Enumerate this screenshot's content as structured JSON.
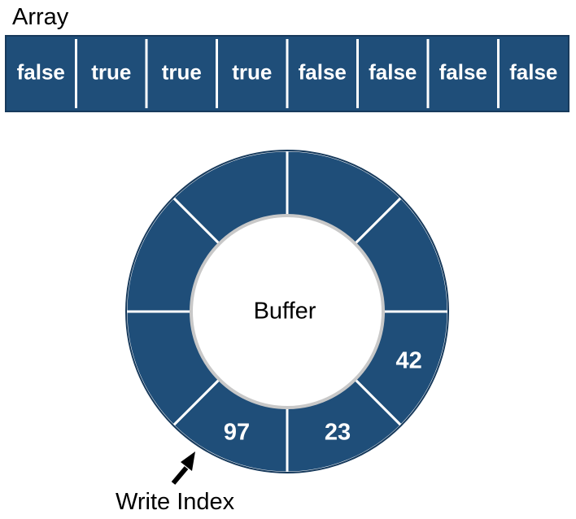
{
  "array": {
    "title": "Array",
    "cells": [
      "false",
      "true",
      "true",
      "true",
      "false",
      "false",
      "false",
      "false"
    ]
  },
  "buffer": {
    "label": "Buffer",
    "slots": [
      "",
      "",
      "42",
      "23",
      "97",
      "",
      "",
      ""
    ]
  },
  "write_index": {
    "label": "Write Index"
  },
  "colors": {
    "cell_fill": "#1f4e79",
    "cell_border": "#173a5c",
    "divider": "#ffffff",
    "inner_ring": "#c8c8c8",
    "arrow": "#000000"
  }
}
